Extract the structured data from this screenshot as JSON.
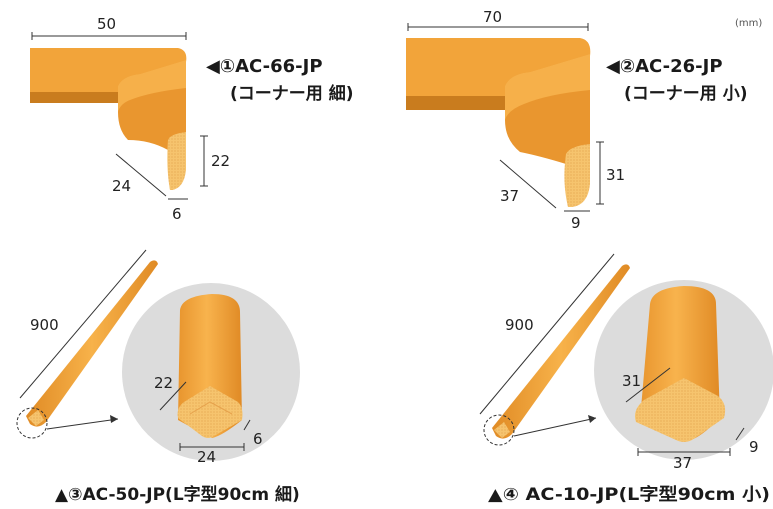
{
  "unit_label": "(mm)",
  "products": [
    {
      "label": "◀①AC-66-JP",
      "sub": "(コーナー用 細)",
      "dims": {
        "width": "50",
        "depth": "24",
        "height": "22",
        "thickness": "6"
      }
    },
    {
      "label": "◀②AC-26-JP",
      "sub": "(コーナー用 小)",
      "dims": {
        "width": "70",
        "depth": "37",
        "height": "31",
        "thickness": "9"
      }
    },
    {
      "label": "▲③AC-50-JP(L字型90cm 細)",
      "dims": {
        "length": "900",
        "height": "22",
        "width": "24",
        "thickness": "6"
      }
    },
    {
      "label": "▲④ AC-10-JP(L字型90cm 小)",
      "dims": {
        "length": "900",
        "height": "31",
        "width": "37",
        "thickness": "9"
      }
    }
  ],
  "colors": {
    "foam_orange": "#F2A43A",
    "foam_shadow": "#C97C1E",
    "foam_cut": "#F6C46E",
    "circle_gray": "#DCDCDC"
  }
}
